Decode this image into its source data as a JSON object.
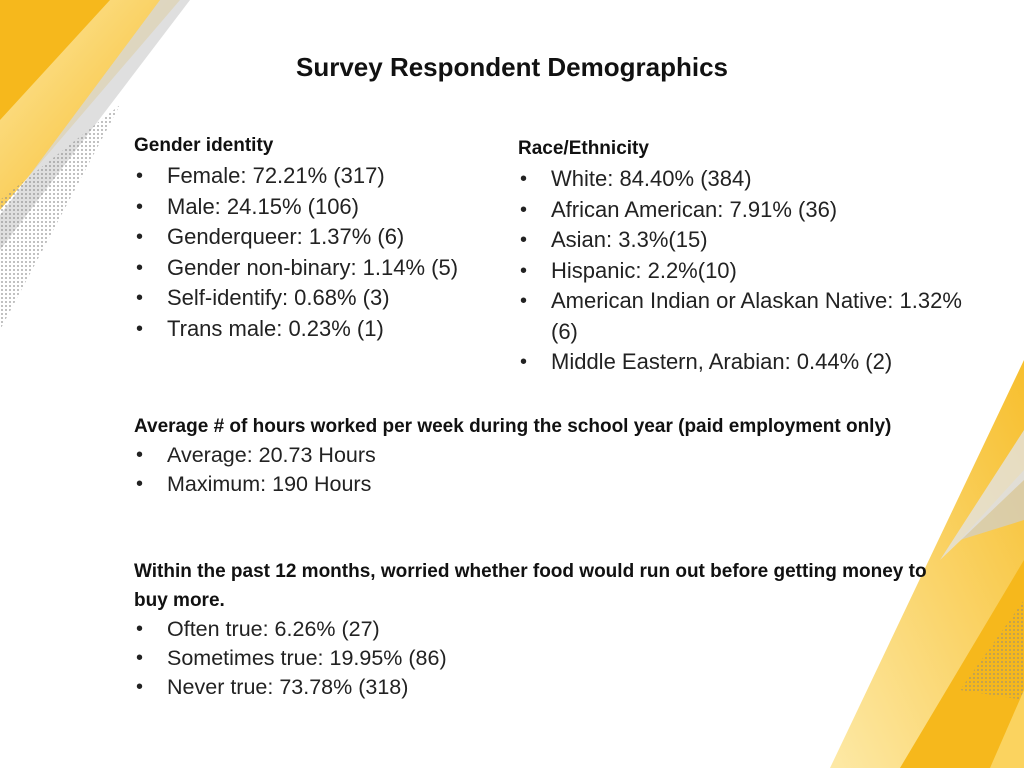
{
  "title": "Survey Respondent Demographics",
  "gender": {
    "heading": "Gender identity",
    "items": [
      "Female: 72.21% (317)",
      "Male: 24.15% (106)",
      "Genderqueer: 1.37% (6)",
      "Gender non-binary: 1.14% (5)",
      "Self-identify: 0.68% (3)",
      "Trans male: 0.23% (1)"
    ]
  },
  "race": {
    "heading": "Race/Ethnicity",
    "items": [
      "White: 84.40% (384)",
      "African American: 7.91% (36)",
      "Asian: 3.3%(15)",
      "Hispanic: 2.2%(10)",
      "American Indian or Alaskan Native: 1.32% (6)",
      "Middle Eastern, Arabian: 0.44% (2)"
    ]
  },
  "hours": {
    "heading": "Average # of hours worked per week during the school year (paid employment only)",
    "items": [
      "Average: 20.73 Hours",
      "Maximum: 190 Hours"
    ]
  },
  "food": {
    "heading": "Within the past 12 months, worried whether food would run out before getting money to buy more.",
    "items": [
      "Often true: 6.26% (27)",
      "Sometimes true: 19.95% (86)",
      "Never true: 73.78% (318)"
    ]
  },
  "bullet_glyph": "•",
  "colors": {
    "gold": "#f6b81c",
    "light_gold": "#fbd35f",
    "pale_gold": "#fde9a6",
    "gray": "#c8c8c8"
  }
}
